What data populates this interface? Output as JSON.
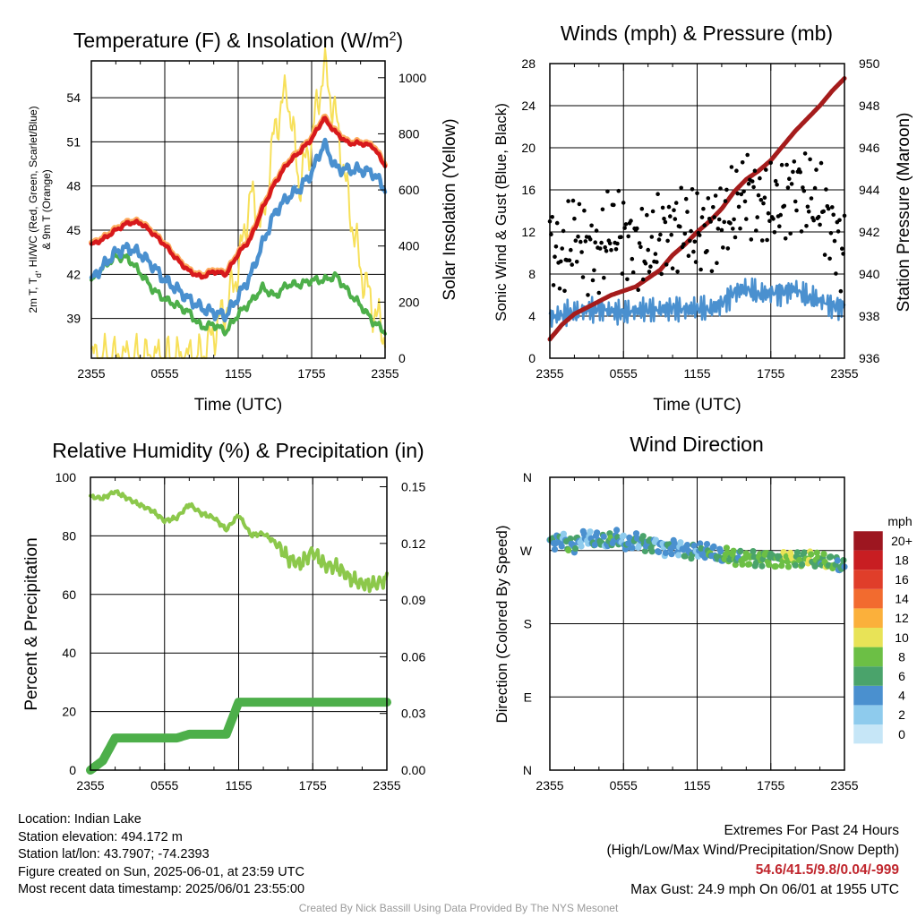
{
  "colors": {
    "temp_red": "#d7191c",
    "dewpoint_green": "#4daf4a",
    "heat_index_blue": "#4a90cf",
    "temp9m_orange": "#fdae61",
    "solar_yellow": "#f7e05a",
    "wind_blue": "#4a90cf",
    "gust_black": "#000000",
    "pressure_maroon": "#a51c1c",
    "rh_lightgreen": "#8cc84b",
    "precip_green": "#4daf4a"
  },
  "chart_data": [
    {
      "panel": "temperature",
      "type": "line",
      "title": "Temperature (F) & Insolation (W/m",
      "title_sup": "2",
      "title_close": ")",
      "xlabel": "Time (UTC)",
      "ylabel_left_line1": "2m T, T",
      "ylabel_left_sub": "d",
      "ylabel_left_line1_end": ", HI/WC (Red, Green, Scarlet/Blue)",
      "ylabel_left_line2": "& 9m T (Orange)",
      "ylabel_right": "Solar Insolation (Yellow)",
      "xticks": [
        "2355",
        "0555",
        "1155",
        "1755",
        "2355"
      ],
      "xlim_hours": [
        0,
        24
      ],
      "ylim_left": [
        36.3,
        56.5
      ],
      "yticks_left": [
        39,
        42,
        45,
        48,
        51,
        54
      ],
      "ylim_right": [
        0,
        1060
      ],
      "yticks_right": [
        0,
        200,
        400,
        600,
        800,
        1000
      ],
      "x": [
        0,
        1,
        2,
        3,
        4,
        5,
        6,
        7,
        8,
        9,
        10,
        11,
        12,
        13,
        14,
        15,
        16,
        17,
        18,
        19,
        20,
        21,
        22,
        23,
        24
      ],
      "series": [
        {
          "key": "temp",
          "values": [
            44,
            44.4,
            45,
            45.5,
            45.5,
            44.8,
            44,
            43,
            42.2,
            41.8,
            42.2,
            42,
            43.4,
            44.4,
            46.5,
            48.2,
            49.5,
            50.3,
            51.2,
            52.6,
            51.6,
            50.9,
            50.9,
            50.7,
            49.4
          ]
        },
        {
          "key": "temp9m",
          "values": [
            44.1,
            44.5,
            45.1,
            45.6,
            45.6,
            44.9,
            44.1,
            43.1,
            42.3,
            41.9,
            42.3,
            42.1,
            43.5,
            44.5,
            46.6,
            48.3,
            49.6,
            50.4,
            51.3,
            52.7,
            51.7,
            51.0,
            51.0,
            50.8,
            49.5
          ]
        },
        {
          "key": "dewpoint",
          "values": [
            41.5,
            42.5,
            43.2,
            43.1,
            42.1,
            41,
            40.3,
            39.9,
            39.4,
            38.4,
            38.6,
            38.1,
            39.3,
            40.1,
            41.1,
            40.5,
            41.3,
            41.3,
            41.6,
            41.6,
            41.9,
            40.8,
            39.9,
            38.8,
            38.1
          ]
        },
        {
          "key": "heatindex",
          "values": [
            41.6,
            42.6,
            43.5,
            43.8,
            43.4,
            42.6,
            41.6,
            41,
            40.3,
            39.7,
            39.4,
            39.2,
            40.5,
            41.9,
            44.1,
            46.2,
            47.2,
            47.8,
            48.9,
            50.9,
            49.2,
            49.1,
            49.1,
            48.9,
            47.8
          ]
        },
        {
          "key": "solar",
          "axis": "right",
          "values": [
            0,
            0,
            0,
            0,
            0,
            0,
            0,
            0,
            0,
            3,
            90,
            180,
            320,
            580,
            470,
            820,
            960,
            620,
            780,
            1040,
            850,
            560,
            320,
            180,
            80
          ]
        }
      ]
    },
    {
      "panel": "winds",
      "type": "line",
      "title": "Winds (mph) & Pressure (mb)",
      "xlabel": "Time (UTC)",
      "ylabel_left": "Sonic Wind & Gust (Blue, Black)",
      "ylabel_right": "Station Pressure (Maroon)",
      "xticks": [
        "2355",
        "0555",
        "1155",
        "1755",
        "2355"
      ],
      "xlim_hours": [
        0,
        24
      ],
      "ylim_left": [
        0,
        28
      ],
      "yticks_left": [
        0,
        4,
        8,
        12,
        16,
        20,
        24,
        28
      ],
      "ylim_right": [
        936,
        950
      ],
      "yticks_right": [
        936,
        938,
        940,
        942,
        944,
        946,
        948,
        950
      ],
      "x": [
        0,
        1,
        2,
        3,
        4,
        5,
        6,
        7,
        8,
        9,
        10,
        11,
        12,
        13,
        14,
        15,
        16,
        17,
        18,
        19,
        20,
        21,
        22,
        23,
        24
      ],
      "series": [
        {
          "key": "wind",
          "values": [
            3.9,
            4.1,
            4.3,
            4.6,
            4.7,
            4.5,
            4.3,
            4.5,
            4.6,
            4.6,
            4.8,
            4.6,
            4.7,
            4.6,
            5.2,
            6.3,
            6.6,
            6.0,
            6.2,
            6.3,
            6.6,
            5.7,
            5.5,
            5.0,
            4.9
          ]
        },
        {
          "key": "gust",
          "values": [
            11.2,
            9.0,
            12.1,
            10.4,
            9.8,
            12.5,
            11.7,
            10.7,
            10.0,
            11.8,
            12.2,
            12.6,
            11.7,
            12.4,
            13.0,
            14.0,
            16.3,
            14.7,
            14.3,
            14.7,
            16.7,
            15.3,
            14.7,
            12.3,
            9.7
          ]
        },
        {
          "key": "pressure",
          "axis": "right",
          "values": [
            936.9,
            937.6,
            938.1,
            938.4,
            938.7,
            939.0,
            939.2,
            939.4,
            939.8,
            940.2,
            940.9,
            941.4,
            942.0,
            942.5,
            943.1,
            943.9,
            944.5,
            944.9,
            945.4,
            946.1,
            946.8,
            947.4,
            948.0,
            948.7,
            949.3
          ]
        }
      ]
    },
    {
      "panel": "humidity",
      "type": "line",
      "title": "Relative Humidity (%) & Precipitation (in)",
      "xlabel": "",
      "ylabel_left": "Percent & Precipitation",
      "xticks": [
        "2355",
        "0555",
        "1155",
        "1755",
        "2355"
      ],
      "xlim_hours": [
        0,
        24
      ],
      "ylim_left": [
        0,
        100
      ],
      "yticks_left": [
        0,
        20,
        40,
        60,
        80,
        100
      ],
      "ylim_right": [
        0,
        0.155
      ],
      "yticks_right": [
        "0.00",
        "0.03",
        "0.06",
        "0.09",
        "0.12",
        "0.15"
      ],
      "yticks_right_values": [
        0,
        0.03,
        0.06,
        0.09,
        0.12,
        0.15
      ],
      "x": [
        0,
        1,
        2,
        3,
        4,
        5,
        6,
        7,
        8,
        9,
        10,
        11,
        12,
        13,
        14,
        15,
        16,
        17,
        18,
        19,
        20,
        21,
        22,
        23,
        24
      ],
      "series": [
        {
          "key": "rh",
          "values": [
            93.4,
            92.8,
            95.2,
            92.8,
            90.6,
            88.6,
            85.1,
            86.2,
            90.8,
            87.6,
            86.2,
            82.1,
            87.2,
            80.3,
            80.8,
            77.6,
            72.3,
            70.3,
            74.8,
            69.9,
            69.4,
            65.6,
            63.6,
            63.4,
            65.1
          ]
        },
        {
          "key": "precip",
          "axis": "right",
          "values": [
            0.0,
            0.005,
            0.017,
            0.017,
            0.017,
            0.017,
            0.017,
            0.017,
            0.019,
            0.019,
            0.019,
            0.019,
            0.036,
            0.036,
            0.036,
            0.036,
            0.036,
            0.036,
            0.036,
            0.036,
            0.036,
            0.036,
            0.036,
            0.036,
            0.036
          ]
        }
      ]
    },
    {
      "panel": "wind_direction",
      "type": "scatter",
      "title": "Wind Direction",
      "xlabel": "",
      "ylabel_left": "Direction (Colored By Speed)",
      "xticks": [
        "2355",
        "0555",
        "1155",
        "1755",
        "2355"
      ],
      "xlim_hours": [
        0,
        24
      ],
      "ylim_left": [
        0,
        360
      ],
      "yticks_left": [
        "N",
        "E",
        "S",
        "W",
        "N"
      ],
      "yticks_left_values": [
        0,
        90,
        180,
        270,
        360
      ],
      "colorbar_title": "mph",
      "colorbar_labels": [
        "0",
        "2",
        "4",
        "6",
        "8",
        "10",
        "12",
        "14",
        "16",
        "18",
        "20+"
      ],
      "colorbar_colors": [
        "#c6e6f7",
        "#8ecbed",
        "#4a90cf",
        "#4aa36b",
        "#6cbf45",
        "#e8e357",
        "#fbb03b",
        "#f26b2f",
        "#e03e2a",
        "#c81e22",
        "#9d1620"
      ],
      "points": {
        "x": [
          0,
          0.5,
          1,
          1.5,
          2,
          2.5,
          3,
          3.5,
          4,
          4.5,
          5,
          5.5,
          6,
          6.5,
          7,
          7.5,
          8,
          8.5,
          9,
          9.5,
          10,
          10.5,
          11,
          11.5,
          12,
          12.5,
          13,
          13.5,
          14,
          14.5,
          15,
          15.5,
          16,
          16.5,
          17,
          17.5,
          18,
          18.5,
          19,
          19.5,
          20,
          20.5,
          21,
          21.5,
          22,
          22.5,
          23,
          23.5,
          24
        ],
        "direction": [
          279,
          282,
          285,
          278,
          276,
          283,
          287,
          281,
          284,
          279,
          282,
          286,
          280,
          278,
          283,
          281,
          277,
          279,
          275,
          272,
          276,
          273,
          270,
          268,
          271,
          267,
          269,
          265,
          262,
          264,
          260,
          262,
          259,
          262,
          258,
          263,
          261,
          257,
          262,
          259,
          260,
          258,
          262,
          257,
          258,
          255,
          254,
          252,
          248
        ],
        "speed": [
          4,
          5,
          3,
          6,
          5,
          4,
          2,
          4,
          5,
          4,
          6,
          4,
          3,
          5,
          4,
          4,
          6,
          4,
          3,
          4,
          5,
          2,
          4,
          5,
          3,
          4,
          6,
          4,
          5,
          8,
          7,
          6,
          9,
          7,
          6,
          8,
          7,
          6,
          8,
          10,
          7,
          6,
          9,
          7,
          6,
          8,
          7,
          6,
          4
        ]
      }
    }
  ],
  "footer": {
    "location": "Location: Indian Lake",
    "elevation": "Station elevation: 494.172 m",
    "latlon": "Station lat/lon: 43.7907; -74.2393",
    "created": "Figure created on Sun, 2025-06-01, at 23:59 UTC",
    "recent": "Most recent data timestamp: 2025/06/01 23:55:00"
  },
  "extremes": {
    "title": "Extremes For Past 24 Hours",
    "subtitle": "(High/Low/Max Wind/Precipitation/Snow Depth)",
    "values": "54.6/41.5/9.8/0.04/-999",
    "max_gust": "Max Gust: 24.9 mph On 06/01 at 1955 UTC"
  },
  "credit": "Created By Nick Bassill Using Data Provided By The NYS Mesonet"
}
